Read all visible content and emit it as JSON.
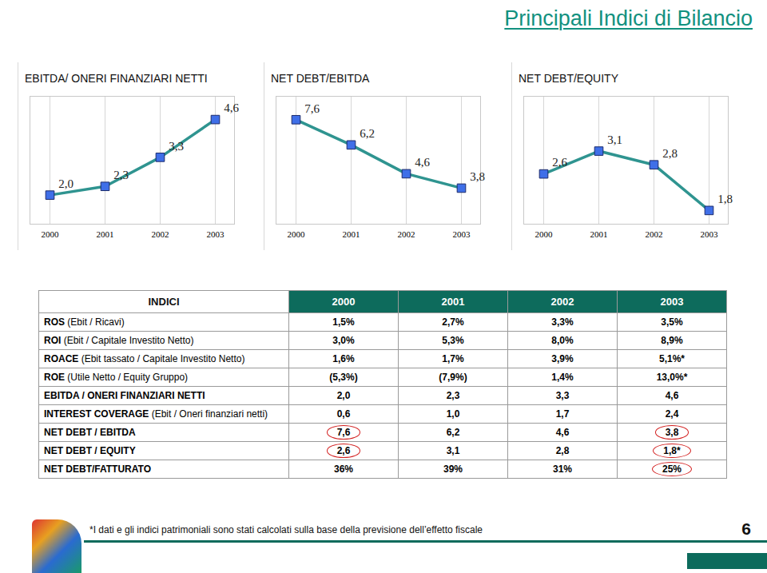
{
  "title": "Principali Indici di Bilancio",
  "chart_data": [
    {
      "type": "line",
      "title": "EBITDA/ ONERI FINANZIARI NETTI",
      "categories": [
        "2000",
        "2001",
        "2002",
        "2003"
      ],
      "values": [
        2.0,
        2.3,
        3.3,
        4.6
      ],
      "value_labels": [
        "2,0",
        "2,3",
        "3,3",
        "4,6"
      ],
      "color": "#2f9490",
      "marker": "square",
      "data_labels": true,
      "tick_labels": "x",
      "grid": true,
      "ylim": [
        1,
        5.4
      ],
      "yticks": []
    },
    {
      "type": "line",
      "title": "NET DEBT/EBITDA",
      "categories": [
        "2000",
        "2001",
        "2002",
        "2003"
      ],
      "values": [
        7.6,
        6.2,
        4.6,
        3.8
      ],
      "value_labels": [
        "7,6",
        "6,2",
        "4,6",
        "3,8"
      ],
      "color": "#2f9490",
      "marker": "square",
      "data_labels": true,
      "tick_labels": "x",
      "grid": true,
      "ylim": [
        1.8,
        8.9
      ],
      "yticks": []
    },
    {
      "type": "line",
      "title": "NET DEBT/EQUITY",
      "categories": [
        "2000",
        "2001",
        "2002",
        "2003"
      ],
      "values": [
        2.6,
        3.1,
        2.8,
        1.8
      ],
      "value_labels": [
        "2,6",
        "3,1",
        "2,8",
        "1,8"
      ],
      "color": "#2f9490",
      "marker": "square",
      "data_labels": true,
      "tick_labels": "x",
      "grid": true,
      "ylim": [
        1.5,
        4.3
      ],
      "yticks": []
    }
  ],
  "table": {
    "header": [
      "INDICI",
      "2000",
      "2001",
      "2002",
      "2003"
    ],
    "rows": [
      [
        "ROS (Ebit / Ricavi)",
        "1,5%",
        "2,7%",
        "3,3%",
        "3,5%"
      ],
      [
        "ROI (Ebit / Capitale Investito Netto)",
        "3,0%",
        "5,3%",
        "8,0%",
        "8,9%"
      ],
      [
        "ROACE (Ebit tassato / Capitale Investito Netto)",
        "1,6%",
        "1,7%",
        "3,9%",
        "5,1%*"
      ],
      [
        "ROE (Utile Netto / Equity Gruppo)",
        "(5,3%)",
        "(7,9%)",
        "1,4%",
        "13,0%*"
      ],
      [
        "EBITDA / ONERI FINANZIARI NETTI",
        "2,0",
        "2,3",
        "3,3",
        "4,6"
      ],
      [
        "INTEREST COVERAGE (Ebit / Oneri finanziari netti)",
        "0,6",
        "1,0",
        "1,7",
        "2,4"
      ],
      [
        "NET DEBT / EBITDA",
        "7,6",
        "6,2",
        "4,6",
        "3,8"
      ],
      [
        "NET DEBT / EQUITY",
        "2,6",
        "3,1",
        "2,8",
        "1,8*"
      ],
      [
        "NET DEBT/FATTURATO",
        "36%",
        "39%",
        "31%",
        "25%"
      ]
    ]
  },
  "footnote": "*I dati e gli indici patrimoniali sono stati calcolati sulla base della previsione dell’effetto fiscale",
  "page_number": "6"
}
